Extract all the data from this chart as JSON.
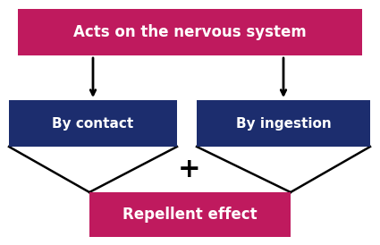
{
  "bg_color": "#ffffff",
  "box1_text": "Acts on the nervous system",
  "box1_color": "#bf1a5e",
  "box2_text": "By contact",
  "box2_color": "#1c2d6e",
  "box3_text": "By ingestion",
  "box3_color": "#1c2d6e",
  "box4_text": "Repellent effect",
  "box4_color": "#bf1a5e",
  "plus_text": "+",
  "text_color": "#ffffff",
  "arrow_color": "#000000",
  "line_color": "#000000",
  "figw": 4.25,
  "figh": 2.74,
  "dpi": 100
}
